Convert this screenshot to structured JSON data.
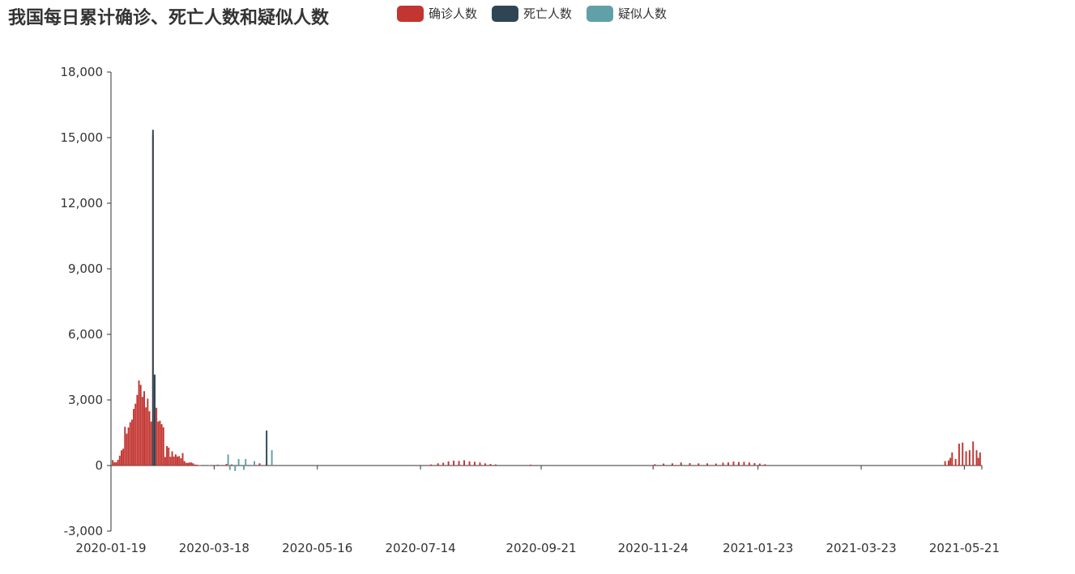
{
  "title": "我国每日累计确诊、死亡人数和疑似人数",
  "legend": [
    {
      "name": "确诊人数",
      "color": "#c23531"
    },
    {
      "name": "死亡人数",
      "color": "#2f4554"
    },
    {
      "name": "疑似人数",
      "color": "#61a0a8"
    }
  ],
  "chart_data": {
    "type": "bar",
    "title": "我国每日累计确诊、死亡人数和疑似人数",
    "ylim": [
      -3000,
      18000
    ],
    "yticks": [
      "18,000",
      "15,000",
      "12,000",
      "9,000",
      "6,000",
      "3,000",
      "0",
      "-3,000"
    ],
    "ytick_values": [
      18000,
      15000,
      12000,
      9000,
      6000,
      3000,
      0,
      -3000
    ],
    "xticks": [
      "2020-01-19",
      "2020-03-18",
      "2020-05-16",
      "2020-07-14",
      "2020-09-21",
      "2020-11-24",
      "2021-01-23",
      "2021-03-23",
      "2021-05-21"
    ],
    "x_start": "2020-01-19",
    "x_end": "2021-05-31",
    "series": [
      {
        "name": "确诊人数",
        "color": "#c23531",
        "points": [
          [
            "2020-01-20",
            250
          ],
          [
            "2020-01-21",
            150
          ],
          [
            "2020-01-22",
            150
          ],
          [
            "2020-01-23",
            260
          ],
          [
            "2020-01-24",
            450
          ],
          [
            "2020-01-25",
            690
          ],
          [
            "2020-01-26",
            770
          ],
          [
            "2020-01-27",
            1770
          ],
          [
            "2020-01-28",
            1460
          ],
          [
            "2020-01-29",
            1740
          ],
          [
            "2020-01-30",
            1980
          ],
          [
            "2020-01-31",
            2100
          ],
          [
            "2020-02-01",
            2590
          ],
          [
            "2020-02-02",
            2830
          ],
          [
            "2020-02-03",
            3230
          ],
          [
            "2020-02-04",
            3890
          ],
          [
            "2020-02-05",
            3690
          ],
          [
            "2020-02-06",
            3140
          ],
          [
            "2020-02-07",
            3400
          ],
          [
            "2020-02-08",
            2660
          ],
          [
            "2020-02-09",
            3060
          ],
          [
            "2020-02-10",
            2480
          ],
          [
            "2020-02-11",
            2010
          ],
          [
            "2020-02-12",
            15150
          ],
          [
            "2020-02-13",
            4050
          ],
          [
            "2020-02-14",
            2640
          ],
          [
            "2020-02-15",
            2010
          ],
          [
            "2020-02-16",
            2050
          ],
          [
            "2020-02-17",
            1890
          ],
          [
            "2020-02-18",
            1750
          ],
          [
            "2020-02-19",
            390
          ],
          [
            "2020-02-20",
            890
          ],
          [
            "2020-02-21",
            820
          ],
          [
            "2020-02-22",
            400
          ],
          [
            "2020-02-23",
            650
          ],
          [
            "2020-02-24",
            410
          ],
          [
            "2020-02-25",
            510
          ],
          [
            "2020-02-26",
            410
          ],
          [
            "2020-02-27",
            430
          ],
          [
            "2020-02-28",
            330
          ],
          [
            "2020-02-29",
            570
          ],
          [
            "2020-03-01",
            200
          ],
          [
            "2020-03-02",
            125
          ],
          [
            "2020-03-03",
            120
          ],
          [
            "2020-03-04",
            140
          ],
          [
            "2020-03-05",
            140
          ],
          [
            "2020-03-06",
            100
          ],
          [
            "2020-03-07",
            45
          ],
          [
            "2020-03-08",
            40
          ],
          [
            "2020-03-10",
            20
          ],
          [
            "2020-03-15",
            16
          ],
          [
            "2020-03-20",
            40
          ],
          [
            "2020-03-25",
            70
          ],
          [
            "2020-03-28",
            50
          ],
          [
            "2020-04-01",
            40
          ],
          [
            "2020-04-05",
            35
          ],
          [
            "2020-04-10",
            40
          ],
          [
            "2020-04-13",
            100
          ],
          [
            "2020-04-18",
            25
          ],
          [
            "2020-07-20",
            50
          ],
          [
            "2020-07-24",
            100
          ],
          [
            "2020-07-27",
            130
          ],
          [
            "2020-07-30",
            190
          ],
          [
            "2020-08-02",
            220
          ],
          [
            "2020-08-05",
            210
          ],
          [
            "2020-08-08",
            240
          ],
          [
            "2020-08-11",
            190
          ],
          [
            "2020-08-14",
            170
          ],
          [
            "2020-08-17",
            140
          ],
          [
            "2020-08-20",
            100
          ],
          [
            "2020-08-23",
            70
          ],
          [
            "2020-08-26",
            50
          ],
          [
            "2020-09-15",
            40
          ],
          [
            "2020-11-25",
            60
          ],
          [
            "2020-11-30",
            90
          ],
          [
            "2020-12-05",
            100
          ],
          [
            "2020-12-10",
            140
          ],
          [
            "2020-12-15",
            110
          ],
          [
            "2020-12-20",
            100
          ],
          [
            "2020-12-25",
            100
          ],
          [
            "2020-12-30",
            90
          ],
          [
            "2021-01-03",
            130
          ],
          [
            "2021-01-06",
            140
          ],
          [
            "2021-01-09",
            180
          ],
          [
            "2021-01-12",
            160
          ],
          [
            "2021-01-15",
            170
          ],
          [
            "2021-01-18",
            140
          ],
          [
            "2021-01-21",
            110
          ],
          [
            "2021-01-24",
            90
          ],
          [
            "2021-01-27",
            60
          ],
          [
            "2021-05-10",
            200
          ],
          [
            "2021-05-12",
            230
          ],
          [
            "2021-05-13",
            350
          ],
          [
            "2021-05-14",
            600
          ],
          [
            "2021-05-16",
            300
          ],
          [
            "2021-05-18",
            1000
          ],
          [
            "2021-05-20",
            1050
          ],
          [
            "2021-05-22",
            650
          ],
          [
            "2021-05-24",
            700
          ],
          [
            "2021-05-26",
            1100
          ],
          [
            "2021-05-28",
            700
          ],
          [
            "2021-05-29",
            350
          ],
          [
            "2021-05-30",
            600
          ]
        ]
      },
      {
        "name": "死亡人数",
        "color": "#2f4554",
        "points": [
          [
            "2020-02-12",
            15360
          ],
          [
            "2020-02-13",
            4160
          ],
          [
            "2020-04-17",
            1600
          ]
        ]
      },
      {
        "name": "疑似人数",
        "color": "#61a0a8",
        "points": [
          [
            "2020-03-26",
            500
          ],
          [
            "2020-03-27",
            -200
          ],
          [
            "2020-03-30",
            -250
          ],
          [
            "2020-04-01",
            300
          ],
          [
            "2020-04-04",
            -200
          ],
          [
            "2020-04-05",
            300
          ],
          [
            "2020-04-10",
            200
          ],
          [
            "2020-04-20",
            700
          ]
        ]
      }
    ]
  }
}
